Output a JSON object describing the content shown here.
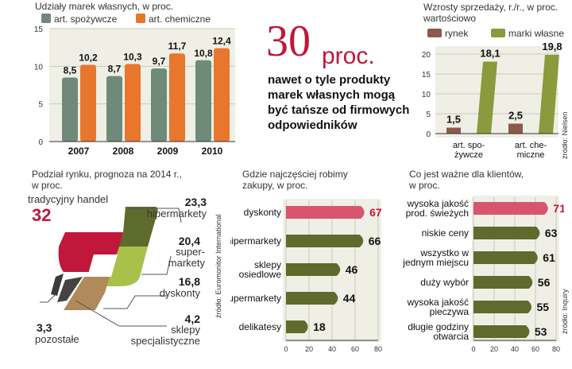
{
  "colors": {
    "red": "#c0173a",
    "dark_green": "#5e6b2c",
    "olive": "#8a9a3c",
    "light_green": "#a9c04a",
    "gray_green": "#6f8a78",
    "orange": "#e8762d",
    "brown": "#8b5a4a",
    "tan": "#b08a5a",
    "dark_gray": "#444444",
    "panel": "#efefe6"
  },
  "headline": {
    "number": "30",
    "unit": "proc.",
    "lines": [
      "nawet o tyle produkty",
      "marek własnych mogą",
      "być tańsze od firmowych",
      "odpowiedników"
    ]
  },
  "chart_data": [
    {
      "id": "private-label-share",
      "type": "bar",
      "title": "Udziały marek własnych, w proc.",
      "categories": [
        "2007",
        "2008",
        "2009",
        "2010"
      ],
      "series": [
        {
          "name": "art. spożywcze",
          "values": [
            8.5,
            8.7,
            9.7,
            10.8
          ],
          "labels": [
            "8,5",
            "8,7",
            "9,7",
            "10,8"
          ]
        },
        {
          "name": "art. chemiczne",
          "values": [
            10.2,
            10.3,
            11.7,
            12.4
          ],
          "labels": [
            "10,2",
            "10,3",
            "11,7",
            "12,4"
          ]
        }
      ],
      "yticks": [
        "0",
        "5",
        "10",
        "15"
      ],
      "ylim": [
        0,
        15
      ]
    },
    {
      "id": "sales-growth",
      "type": "bar",
      "title_lines": [
        "Wzrosty sprzedaży, r./r., w proc.",
        "wartościowo"
      ],
      "categories": [
        [
          "art. spo-",
          "żywcze"
        ],
        [
          "art. che-",
          "miczne"
        ]
      ],
      "series": [
        {
          "name": "rynek",
          "values": [
            1.5,
            2.5
          ],
          "labels": [
            "1,5",
            "2,5"
          ]
        },
        {
          "name": "marki własne",
          "values": [
            18.1,
            19.8
          ],
          "labels": [
            "18,1",
            "19,8"
          ]
        }
      ],
      "yticks": [
        "0",
        "5",
        "10",
        "15",
        "20"
      ],
      "ylim": [
        0,
        20
      ],
      "source": "źródło: Nielsen"
    },
    {
      "id": "market-share-forecast",
      "type": "pie",
      "title_lines": [
        "Podział rynku, prognoza na 2014 r.,",
        "w proc."
      ],
      "slices": [
        {
          "label": "tradycyjny handel",
          "value": 32,
          "value_label": "32"
        },
        {
          "label": "hipermarkety",
          "value": 23.3,
          "value_label": "23,3"
        },
        {
          "label": "supermarkety",
          "value": 20.4,
          "value_label": "20,4",
          "label_lines": [
            "super-",
            "markety"
          ]
        },
        {
          "label": "dyskonty",
          "value": 16.8,
          "value_label": "16,8"
        },
        {
          "label": "sklepy specjalistyczne",
          "value": 4.2,
          "value_label": "4,2",
          "label_lines": [
            "sklepy",
            "specjalistyczne"
          ]
        },
        {
          "label": "pozostałe",
          "value": 3.3,
          "value_label": "3,3"
        }
      ],
      "source": "źródło: Euromonitor International"
    },
    {
      "id": "where-we-shop",
      "type": "bar",
      "orientation": "horizontal",
      "title_lines": [
        "Gdzie najczęściej robimy",
        "zakupy, w proc."
      ],
      "categories": [
        [
          "dyskonty"
        ],
        [
          "hipermarkety"
        ],
        [
          "sklepy",
          "osiedlowe"
        ],
        [
          "supermarkety"
        ],
        [
          "delikatesy"
        ]
      ],
      "values": [
        67,
        66,
        46,
        44,
        18
      ],
      "labels": [
        "67",
        "66",
        "46",
        "44",
        "18"
      ],
      "xticks": [
        "0",
        "20",
        "40",
        "60",
        "80"
      ],
      "xlim": [
        0,
        80
      ]
    },
    {
      "id": "what-matters",
      "type": "bar",
      "orientation": "horizontal",
      "title_lines": [
        "Co jest ważne dla klientów,",
        "w proc."
      ],
      "categories": [
        [
          "wysoka jakość",
          "prod. świeżych"
        ],
        [
          "niskie ceny"
        ],
        [
          "wszystko w",
          "jednym miejscu"
        ],
        [
          "duży wybór"
        ],
        [
          "wysoka jakość",
          "pieczywa"
        ],
        [
          "długie godziny",
          "otwarcia"
        ]
      ],
      "values": [
        71,
        63,
        61,
        56,
        55,
        53
      ],
      "labels": [
        "71",
        "63",
        "61",
        "56",
        "55",
        "53"
      ],
      "xticks": [
        "0",
        "20",
        "40",
        "60",
        "80"
      ],
      "xlim": [
        0,
        80
      ],
      "source": "źródło: Inquiry"
    }
  ]
}
